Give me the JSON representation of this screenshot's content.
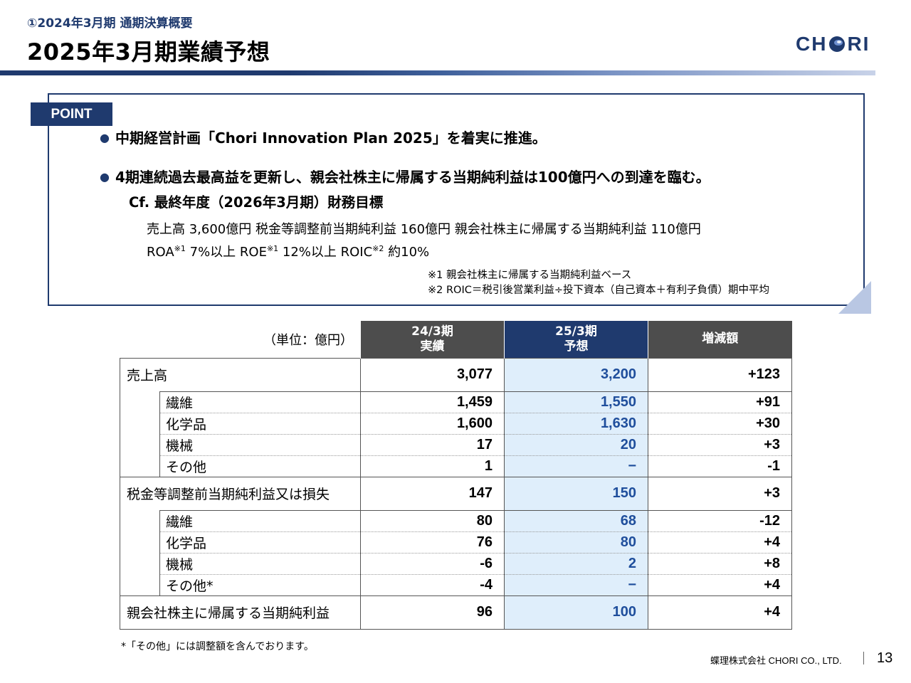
{
  "header": {
    "subtitle": "①2024年3月期 通期決算概要",
    "title": "2025年3月期業績予想",
    "logo_left": "CH",
    "logo_right": "RI"
  },
  "point": {
    "label": "POINT",
    "bullets": [
      "中期経営計画「Chori Innovation Plan 2025」を着実に推進。",
      "4期連続過去最高益を更新し、親会社株主に帰属する当期純利益は100億円への到達を臨む。"
    ],
    "cf_title": "Cf. 最終年度（2026年3月期）財務目標",
    "target_line1": "売上高 3,600億円  税金等調整前当期純利益 160億円  親会社株主に帰属する当期純利益 110億円",
    "target_line2": {
      "roa": "ROA",
      "roa_sup": "※1",
      "roa_val": " 7%以上  ROE",
      "roe_sup": "※1",
      "roe_val": " 12%以上  ROIC",
      "roic_sup": "※2",
      "roic_val": " 約10%"
    },
    "notes": [
      "※1 親会社株主に帰属する当期純利益ベース",
      "※2 ROIC＝税引後営業利益÷投下資本（自己資本＋有利子負債）期中平均"
    ]
  },
  "table": {
    "unit": "（単位：億円）",
    "headers": [
      "24/3期\n実績",
      "25/3期\n予想",
      "増減額"
    ],
    "header_lines": [
      [
        "24/3期",
        "実績"
      ],
      [
        "25/3期",
        "予想"
      ],
      [
        "増減額"
      ]
    ],
    "sections": [
      {
        "label": "売上高",
        "values": [
          "3,077",
          "3,200",
          "+123"
        ],
        "rows": [
          {
            "label": "繊維",
            "values": [
              "1,459",
              "1,550",
              "+91"
            ]
          },
          {
            "label": "化学品",
            "values": [
              "1,600",
              "1,630",
              "+30"
            ]
          },
          {
            "label": "機械",
            "values": [
              "17",
              "20",
              "+3"
            ]
          },
          {
            "label": "その他",
            "values": [
              "1",
              "−",
              "-1"
            ]
          }
        ]
      },
      {
        "label": "税金等調整前当期純利益又は損失",
        "values": [
          "147",
          "150",
          "+3"
        ],
        "rows": [
          {
            "label": "繊維",
            "values": [
              "80",
              "68",
              "-12"
            ]
          },
          {
            "label": "化学品",
            "values": [
              "76",
              "80",
              "+4"
            ]
          },
          {
            "label": "機械",
            "values": [
              "-6",
              "2",
              "+8"
            ]
          },
          {
            "label": "その他*",
            "values": [
              "-4",
              "−",
              "+4"
            ]
          }
        ]
      },
      {
        "label": "親会社株主に帰属する当期純利益",
        "values": [
          "96",
          "100",
          "+4"
        ],
        "rows": []
      }
    ]
  },
  "footnote": "*「その他」には調整額を含んでおります。",
  "footer": {
    "company": "蝶理株式会社 CHORI CO., LTD.",
    "page": "13"
  },
  "colors": {
    "brand_navy": "#1f3a6e",
    "header_gray": "#4d4d4d",
    "forecast_bg": "#dfeefb",
    "forecast_text": "#1f4e9c"
  }
}
